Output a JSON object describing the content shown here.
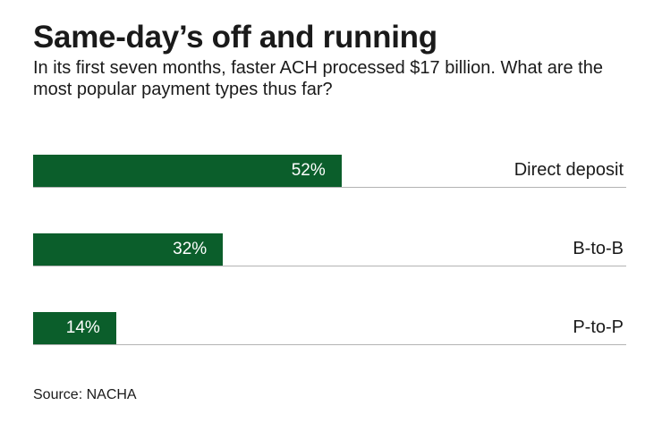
{
  "chart_data": {
    "type": "bar",
    "orientation": "horizontal",
    "title": "Same-day’s off and running",
    "subtitle": "In its first seven months, faster ACH processed $17 billion. What are the most popular payment types thus far?",
    "categories": [
      "Direct deposit",
      "B-to-B",
      "P-to-P"
    ],
    "values": [
      52,
      32,
      14
    ],
    "value_labels": [
      "52%",
      "32%",
      "14%"
    ],
    "unit": "%",
    "xlim": [
      0,
      100
    ],
    "grid": false,
    "legend": "none",
    "bar_color": "#0b5e2b",
    "source": "Source: NACHA"
  }
}
